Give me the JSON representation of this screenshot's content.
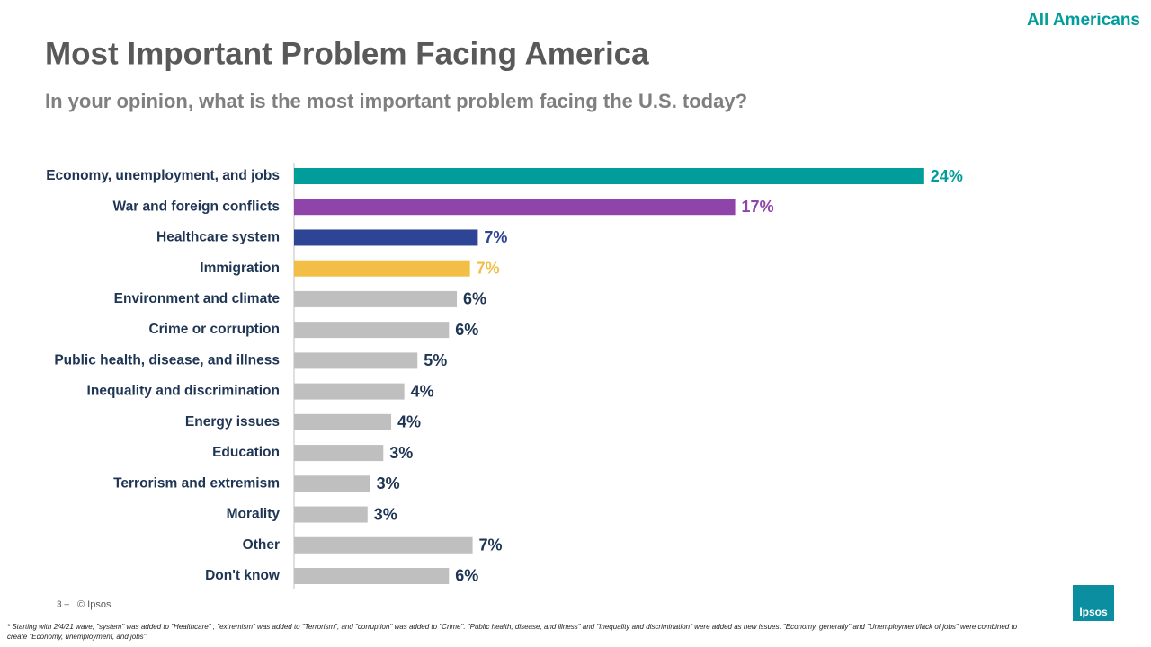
{
  "chart_data": {
    "type": "hbar",
    "title": "Most Important Problem Facing America",
    "subtitle": "In your opinion, what is the most important problem facing the U.S. today?",
    "categories": [
      "Economy, unemployment, and jobs",
      "War and foreign conflicts",
      "Healthcare system",
      "Immigration",
      "Environment and climate",
      "Crime or corruption",
      "Public health, disease, and illness",
      "Inequality and discrimination",
      "Energy issues",
      "Education",
      "Terrorism and extremism",
      "Morality",
      "Other",
      "Don't know"
    ],
    "values": [
      24,
      16.8,
      7,
      6.7,
      6.2,
      5.9,
      4.7,
      4.2,
      3.7,
      3.4,
      2.9,
      2.8,
      6.8,
      5.9
    ],
    "value_labels": [
      "24%",
      "17%",
      "7%",
      "7%",
      "6%",
      "6%",
      "5%",
      "4%",
      "4%",
      "3%",
      "3%",
      "3%",
      "7%",
      "6%"
    ],
    "colors": [
      "#009d9a",
      "#8e44a8",
      "#2e4495",
      "#f2be46",
      "#bfbfbf",
      "#bfbfbf",
      "#bfbfbf",
      "#bfbfbf",
      "#bfbfbf",
      "#bfbfbf",
      "#bfbfbf",
      "#bfbfbf",
      "#bfbfbf",
      "#bfbfbf"
    ],
    "label_colors": [
      "#009d9a",
      "#8e44a8",
      "#2e4495",
      "#f2be46",
      "#1f3554",
      "#1f3554",
      "#1f3554",
      "#1f3554",
      "#1f3554",
      "#1f3554",
      "#1f3554",
      "#1f3554",
      "#1f3554",
      "#1f3554"
    ]
  },
  "audience": "All Americans",
  "footer": {
    "page": "3 –",
    "copyright": "© Ipsos",
    "logo": "Ipsos",
    "footnote": "* Starting with 2/4/21 wave, \"system\" was added to \"Healthcare\" , \"extremism\"  was added to \"Terrorism\",  and \"corruption\" was added to \"Crime\".  \"Public health, disease, and illness\"  and \"Inequality and discrimination\"  were added as new issues. \"Economy, generally\" and \"Unemployment/lack  of jobs\" were combined  to create \"Economy, unemployment,   and jobs\""
  }
}
